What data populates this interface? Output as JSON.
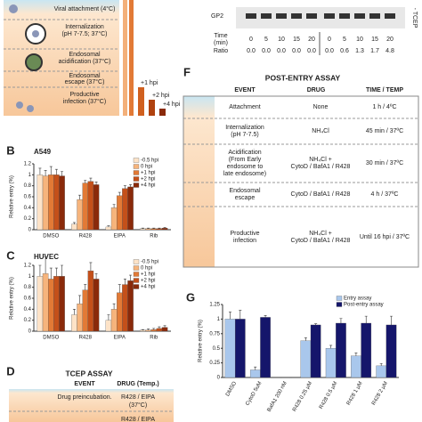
{
  "panel_a": {
    "stages": [
      "Viral attachment (4°C)",
      "Internalization",
      "(pH 7-7.5; 37°C)",
      "Endosomal",
      "acidification (37°C)",
      "Endosomal",
      "escape (37°C)",
      "Productive",
      "infection (37°C)"
    ],
    "timepoints": [
      "+1 hpi",
      "+2 hpi",
      "+4 hpi"
    ]
  },
  "panel_e": {
    "band": "GP2",
    "condition": "- TCEP",
    "time_label": [
      "Time",
      "(min)"
    ],
    "times": [
      "0",
      "5",
      "10",
      "15",
      "20",
      "0",
      "5",
      "10",
      "15",
      "20"
    ],
    "ratio_label": "Ratio",
    "ratios": [
      "0.0",
      "0.0",
      "0.0",
      "0.0",
      "0.0",
      "0.0",
      "0.6",
      "1.3",
      "1.7",
      "4.8"
    ]
  },
  "panel_f": {
    "letter": "F",
    "title": "POST-ENTRY ASSAY",
    "header": [
      "EVENT",
      "DRUG",
      "TIME / TEMP"
    ],
    "rows": [
      {
        "event": [
          "Attachment"
        ],
        "drug": [
          "None"
        ],
        "time": "1 h / 4ºC"
      },
      {
        "event": [
          "Internalization",
          "(pH 7-7.5)"
        ],
        "drug": [
          "NH₄Cl"
        ],
        "time": "45 min / 37ºC"
      },
      {
        "event": [
          "Acidification",
          "(From Early",
          "endosome to",
          "late endosome)"
        ],
        "drug": [
          "NH₄Cl +",
          "CytoD / BafA1 / R428"
        ],
        "time": "30 min / 37ºC"
      },
      {
        "event": [
          "Endosomal",
          "escape"
        ],
        "drug": [
          "CytoD / BafA1 / R428"
        ],
        "time": "4 h / 37ºC"
      },
      {
        "event": [
          "Productive",
          "infection"
        ],
        "drug": [
          "NH₄Cl +",
          "CytoD / BafA1 / R428"
        ],
        "time": "Until 16 hpi / 37ºC"
      }
    ]
  },
  "panel_d": {
    "letter": "D",
    "title": "TCEP ASSAY",
    "header": [
      "EVENT",
      "DRUG (Temp.)"
    ],
    "event": "Drug preincubation.",
    "drug": [
      "R428 / EIPA",
      "(37°C)"
    ],
    "drug_next": "R428 / EIPA"
  },
  "chart_data": [
    {
      "type": "bar",
      "letter": "B",
      "title": "A549",
      "ylabel": "Relative entry (%)",
      "categories": [
        "DMSO",
        "R428",
        "EIPA",
        "Rib"
      ],
      "ylim": [
        0,
        1.2
      ],
      "yticks": [
        0,
        0.2,
        0.4,
        0.6,
        0.8,
        1,
        1.2
      ],
      "series": [
        {
          "name": "-0.5 hpi",
          "color": "#fde3c8",
          "values": [
            1.0,
            0.1,
            0.05,
            0.02
          ],
          "errors": [
            0.12,
            0.03,
            0.02,
            0.01
          ]
        },
        {
          "name": "0 hpi",
          "color": "#f6b47c",
          "values": [
            0.98,
            0.55,
            0.4,
            0.02
          ],
          "errors": [
            0.1,
            0.08,
            0.06,
            0.01
          ]
        },
        {
          "name": "+1 hpi",
          "color": "#e27a36",
          "values": [
            1.0,
            0.85,
            0.62,
            0.02
          ],
          "errors": [
            0.15,
            0.05,
            0.06,
            0.01
          ]
        },
        {
          "name": "+2 hpi",
          "color": "#c4501a",
          "values": [
            1.0,
            0.88,
            0.75,
            0.02
          ],
          "errors": [
            0.1,
            0.06,
            0.05,
            0.01
          ]
        },
        {
          "name": "+4 hpi",
          "color": "#8a2a0a",
          "values": [
            0.98,
            0.82,
            0.78,
            0.03
          ],
          "errors": [
            0.08,
            0.05,
            0.04,
            0.01
          ]
        }
      ]
    },
    {
      "type": "bar",
      "letter": "C",
      "title": "HUVEC",
      "ylabel": "Relative entry (%)",
      "categories": [
        "DMSO",
        "R428",
        "EIPA",
        "Rib"
      ],
      "ylim": [
        0,
        1.2
      ],
      "yticks": [
        0,
        0.2,
        0.4,
        0.6,
        0.8,
        1,
        1.2
      ],
      "series": [
        {
          "name": "-0.5 hpi",
          "color": "#fde3c8",
          "values": [
            1.0,
            0.3,
            0.2,
            0.02
          ],
          "errors": [
            0.2,
            0.1,
            0.1,
            0.01
          ]
        },
        {
          "name": "0 hpi",
          "color": "#f6b47c",
          "values": [
            1.05,
            0.5,
            0.4,
            0.02
          ],
          "errors": [
            0.3,
            0.15,
            0.1,
            0.02
          ]
        },
        {
          "name": "+1 hpi",
          "color": "#e27a36",
          "values": [
            0.95,
            0.75,
            0.7,
            0.03
          ],
          "errors": [
            0.2,
            0.1,
            0.15,
            0.02
          ]
        },
        {
          "name": "+2 hpi",
          "color": "#c4501a",
          "values": [
            1.0,
            1.1,
            0.85,
            0.05
          ],
          "errors": [
            0.15,
            0.15,
            0.1,
            0.03
          ]
        },
        {
          "name": "+4 hpi",
          "color": "#8a2a0a",
          "values": [
            1.0,
            0.95,
            0.92,
            0.07
          ],
          "errors": [
            0.2,
            0.1,
            0.1,
            0.03
          ]
        }
      ]
    },
    {
      "type": "bar",
      "letter": "G",
      "ylabel": "Relative entry (%)",
      "categories": [
        "DMSO",
        "CytoD 5uM",
        "BafA1 200 nM",
        "R428 0.25 µM",
        "R428 0.5 µM",
        "R428 1 µM",
        "R428 2 µM"
      ],
      "ylim": [
        0,
        1.25
      ],
      "yticks": [
        0,
        0.25,
        0.5,
        0.75,
        1,
        1.25
      ],
      "series": [
        {
          "name": "Entry assay",
          "color": "#a9c7ec",
          "values": [
            1.0,
            0.13,
            0.0,
            0.63,
            0.5,
            0.37,
            0.2
          ],
          "errors": [
            0.12,
            0.05,
            0.0,
            0.05,
            0.05,
            0.05,
            0.04
          ]
        },
        {
          "name": "Post-entry assay",
          "color": "#15166b",
          "values": [
            1.0,
            1.03,
            0.0,
            0.9,
            0.93,
            0.93,
            0.9
          ],
          "errors": [
            0.15,
            0.03,
            0.0,
            0.02,
            0.08,
            0.12,
            0.15
          ]
        }
      ]
    }
  ]
}
